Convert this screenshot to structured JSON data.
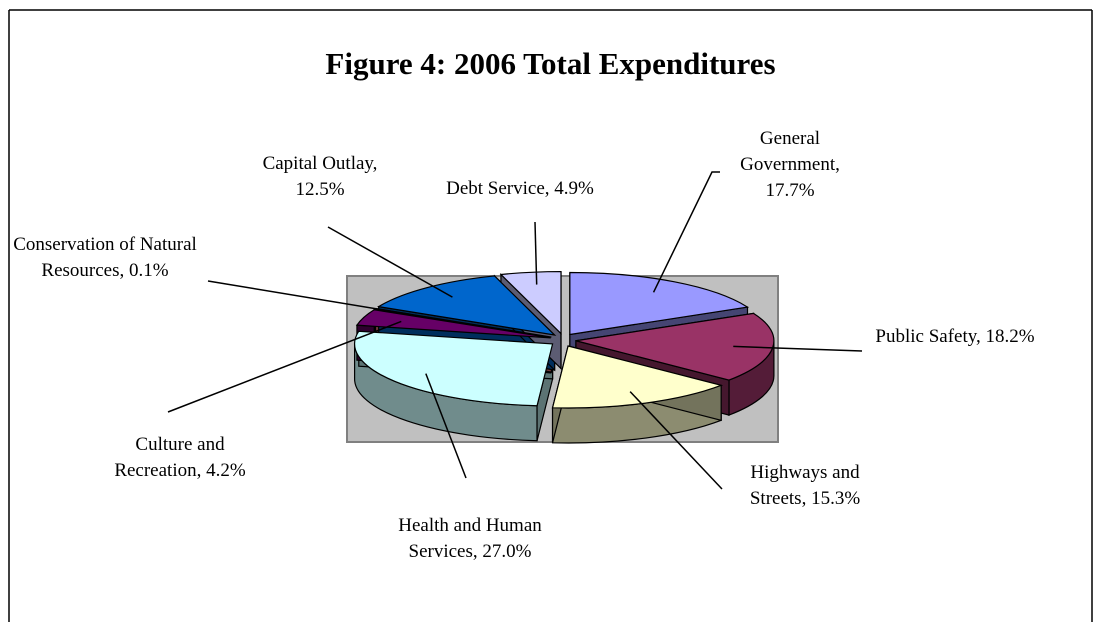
{
  "chart_data": {
    "type": "pie3d",
    "title": "Figure 4:  2006 Total Expenditures",
    "categories": [
      "General Government",
      "Public Safety",
      "Highways and Streets",
      "Health and Human Services",
      "Culture and Recreation",
      "Conservation of Natural Resources",
      "Capital Outlay",
      "Debt Service"
    ],
    "values": [
      17.7,
      18.2,
      15.3,
      27.0,
      4.2,
      0.1,
      12.5,
      4.9
    ],
    "value_labels": [
      "17.7%",
      "18.2%",
      "15.3%",
      "27.0%",
      "4.2%",
      "0.1%",
      "12.5%",
      "4.9%"
    ],
    "colors": [
      "#9999ff",
      "#993366",
      "#ffffcc",
      "#ccffff",
      "#660066",
      "#ff8080",
      "#0066cc",
      "#ccccff"
    ]
  }
}
